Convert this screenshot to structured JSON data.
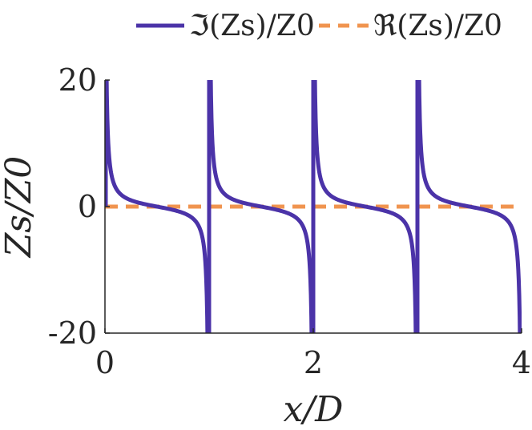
{
  "chart_data": {
    "type": "line",
    "x_label": "x/D",
    "y_label": "Zs/Z0",
    "xlim": [
      0,
      4
    ],
    "ylim": [
      -20,
      20
    ],
    "x_ticks": [
      "0",
      "2",
      "4"
    ],
    "y_ticks": [
      "20",
      "0",
      "-20"
    ],
    "grid": false,
    "legend_position": "top",
    "series": [
      {
        "name": "ℑ(Zs)/Z0",
        "style": "solid",
        "color": "#4b33a8",
        "function": "cot(pi * x)",
        "asymptotes_x": [
          0,
          1,
          2,
          3,
          4
        ],
        "zero_crossings_x": [
          0.5,
          1.5,
          2.5,
          3.5
        ],
        "sample_points": [
          {
            "x": 0.02,
            "y": 15.89
          },
          {
            "x": 0.1,
            "y": 3.08
          },
          {
            "x": 0.2,
            "y": 1.38
          },
          {
            "x": 0.3,
            "y": 0.73
          },
          {
            "x": 0.5,
            "y": 0
          },
          {
            "x": 0.7,
            "y": -0.73
          },
          {
            "x": 0.8,
            "y": -1.38
          },
          {
            "x": 0.9,
            "y": -3.08
          },
          {
            "x": 0.98,
            "y": -15.89
          }
        ]
      },
      {
        "name": "ℜ(Zs)/Z0",
        "style": "dashed",
        "color": "#f0944f",
        "constant_y": 0
      }
    ]
  }
}
